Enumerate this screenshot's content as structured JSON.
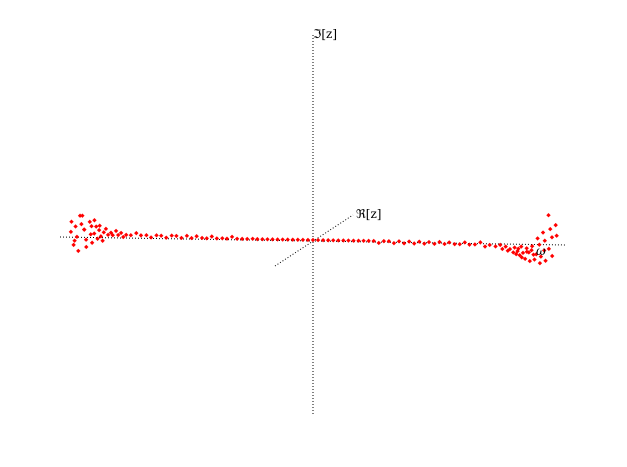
{
  "chart_data": {
    "type": "scatter",
    "projection": "3d-oblique",
    "grid": false,
    "colors": {
      "points": "#ff0000",
      "axes": "#000000"
    },
    "axes": {
      "omega": {
        "label": "ω",
        "range": [
          -1,
          1
        ]
      },
      "real": {
        "label": "ℜ[z]",
        "range": [
          -1,
          1
        ]
      },
      "imag": {
        "label": "ℑ[z]",
        "range": [
          -1,
          1
        ]
      }
    },
    "series": [
      {
        "marker": "diamond",
        "points": [
          [
            -0.96,
            0.02,
            0.02
          ],
          [
            -0.95,
            -0.03,
            0.08
          ],
          [
            -0.95,
            0.05,
            -0.03
          ],
          [
            -0.94,
            0.01,
            0.05
          ],
          [
            -0.94,
            -0.04,
            -0.04
          ],
          [
            -0.93,
            0.06,
            0.1
          ],
          [
            -0.93,
            -0.02,
            0.0
          ],
          [
            -0.92,
            0.03,
            0.06
          ],
          [
            -0.92,
            -0.05,
            -0.07
          ],
          [
            -0.91,
            0.04,
            0.03
          ],
          [
            -0.91,
            -0.01,
            0.11
          ],
          [
            -0.9,
            0.02,
            -0.02
          ],
          [
            -0.9,
            -0.03,
            0.04
          ],
          [
            -0.89,
            0.05,
            0.07
          ],
          [
            -0.89,
            -0.04,
            -0.05
          ],
          [
            -0.88,
            0.01,
            0.01
          ],
          [
            -0.88,
            0.03,
            0.05
          ],
          [
            -0.87,
            -0.02,
            -0.03
          ],
          [
            -0.87,
            0.04,
            0.08
          ],
          [
            -0.86,
            -0.03,
            0.02
          ],
          [
            -0.86,
            0.02,
            0.05
          ],
          [
            -0.85,
            -0.01,
            -0.01
          ],
          [
            -0.85,
            0.03,
            0.03
          ],
          [
            -0.84,
            -0.02,
            0.06
          ],
          [
            -0.84,
            0.01,
            0.0
          ],
          [
            -0.83,
            0.02,
            0.02
          ],
          [
            -0.83,
            -0.01,
            -0.02
          ],
          [
            -0.82,
            0.01,
            0.04
          ],
          [
            -0.81,
            0.0,
            0.01
          ],
          [
            -0.8,
            0.01,
            0.02
          ],
          [
            -0.79,
            -0.01,
            0.01
          ],
          [
            -0.78,
            0.01,
            0.03
          ],
          [
            -0.77,
            0.0,
            0.01
          ],
          [
            -0.76,
            0.01,
            0.02
          ],
          [
            -0.75,
            0.0,
            0.0
          ],
          [
            -0.74,
            0.01,
            0.01
          ],
          [
            -0.72,
            0.0,
            0.01
          ],
          [
            -0.7,
            0.01,
            0.02
          ],
          [
            -0.68,
            0.0,
            0.01
          ],
          [
            -0.66,
            0.01,
            0.01
          ],
          [
            -0.64,
            0.0,
            0.0
          ],
          [
            -0.62,
            0.01,
            0.01
          ],
          [
            -0.6,
            0.0,
            0.01
          ],
          [
            -0.58,
            0.0,
            0.0
          ],
          [
            -0.56,
            0.01,
            0.01
          ],
          [
            -0.54,
            0.0,
            0.01
          ],
          [
            -0.52,
            0.0,
            0.0
          ],
          [
            -0.5,
            0.01,
            0.01
          ],
          [
            -0.48,
            0.0,
            0.0
          ],
          [
            -0.46,
            0.0,
            0.01
          ],
          [
            -0.44,
            0.01,
            0.0
          ],
          [
            -0.42,
            0.0,
            0.0
          ],
          [
            -0.4,
            0.0,
            0.01
          ],
          [
            -0.38,
            0.0,
            0.0
          ],
          [
            -0.36,
            0.01,
            0.0
          ],
          [
            -0.34,
            0.0,
            0.0
          ],
          [
            -0.32,
            0.0,
            0.01
          ],
          [
            -0.3,
            0.0,
            0.0
          ],
          [
            -0.28,
            0.0,
            0.0
          ],
          [
            -0.26,
            0.0,
            0.0
          ],
          [
            -0.24,
            0.01,
            0.0
          ],
          [
            -0.22,
            0.0,
            0.0
          ],
          [
            -0.2,
            0.0,
            0.0
          ],
          [
            -0.18,
            0.0,
            0.0
          ],
          [
            -0.16,
            0.0,
            0.0
          ],
          [
            -0.14,
            0.0,
            0.0
          ],
          [
            -0.12,
            0.0,
            0.0
          ],
          [
            -0.1,
            0.0,
            0.0
          ],
          [
            -0.08,
            0.0,
            0.0
          ],
          [
            -0.06,
            0.0,
            0.0
          ],
          [
            -0.04,
            0.0,
            0.0
          ],
          [
            -0.02,
            0.0,
            0.0
          ],
          [
            0.0,
            0.0,
            0.0
          ],
          [
            0.02,
            0.0,
            0.0
          ],
          [
            0.04,
            0.0,
            0.0
          ],
          [
            0.06,
            0.0,
            0.0
          ],
          [
            0.08,
            0.0,
            0.0
          ],
          [
            0.1,
            0.0,
            0.0
          ],
          [
            0.12,
            0.0,
            0.0
          ],
          [
            0.14,
            0.0,
            0.0
          ],
          [
            0.16,
            0.0,
            0.0
          ],
          [
            0.18,
            0.0,
            0.0
          ],
          [
            0.2,
            0.0,
            0.0
          ],
          [
            0.22,
            0.0,
            0.0
          ],
          [
            0.24,
            0.0,
            0.0
          ],
          [
            0.26,
            0.0,
            -0.01
          ],
          [
            0.28,
            0.0,
            0.0
          ],
          [
            0.3,
            0.0,
            0.0
          ],
          [
            0.32,
            0.0,
            -0.01
          ],
          [
            0.34,
            0.0,
            0.0
          ],
          [
            0.36,
            0.0,
            -0.01
          ],
          [
            0.38,
            0.0,
            0.0
          ],
          [
            0.4,
            0.0,
            -0.01
          ],
          [
            0.42,
            0.0,
            0.0
          ],
          [
            0.44,
            0.0,
            -0.01
          ],
          [
            0.46,
            -0.01,
            0.0
          ],
          [
            0.48,
            0.0,
            -0.01
          ],
          [
            0.5,
            0.0,
            0.0
          ],
          [
            0.52,
            0.0,
            -0.01
          ],
          [
            0.54,
            -0.01,
            0.0
          ],
          [
            0.56,
            0.0,
            -0.01
          ],
          [
            0.58,
            0.0,
            -0.01
          ],
          [
            0.6,
            0.0,
            0.0
          ],
          [
            0.62,
            -0.01,
            -0.01
          ],
          [
            0.64,
            0.0,
            -0.01
          ],
          [
            0.66,
            0.01,
            0.0
          ],
          [
            0.68,
            0.0,
            -0.02
          ],
          [
            0.7,
            -0.01,
            -0.01
          ],
          [
            0.72,
            0.01,
            -0.02
          ],
          [
            0.74,
            0.0,
            -0.01
          ],
          [
            0.75,
            -0.01,
            -0.03
          ],
          [
            0.76,
            0.01,
            -0.02
          ],
          [
            0.77,
            0.0,
            -0.04
          ],
          [
            0.78,
            -0.01,
            -0.03
          ],
          [
            0.79,
            0.01,
            -0.05
          ],
          [
            0.8,
            -0.02,
            -0.02
          ],
          [
            0.8,
            0.02,
            -0.06
          ],
          [
            0.81,
            -0.01,
            -0.04
          ],
          [
            0.81,
            0.01,
            -0.03
          ],
          [
            0.82,
            -0.02,
            -0.06
          ],
          [
            0.82,
            0.02,
            -0.02
          ],
          [
            0.83,
            0.0,
            -0.05
          ],
          [
            0.83,
            -0.03,
            -0.07
          ],
          [
            0.84,
            0.03,
            -0.03
          ],
          [
            0.84,
            -0.01,
            -0.08
          ],
          [
            0.85,
            0.02,
            -0.05
          ],
          [
            0.85,
            -0.03,
            -0.04
          ],
          [
            0.86,
            0.04,
            -0.02
          ],
          [
            0.86,
            -0.02,
            -0.09
          ],
          [
            0.87,
            0.01,
            -0.06
          ],
          [
            0.87,
            -0.04,
            -0.03
          ],
          [
            0.88,
            0.05,
            0.02
          ],
          [
            0.88,
            -0.03,
            -0.08
          ],
          [
            0.89,
            0.03,
            -0.01
          ],
          [
            0.89,
            -0.05,
            -0.05
          ],
          [
            0.9,
            0.06,
            0.05
          ],
          [
            0.9,
            -0.02,
            -0.1
          ],
          [
            0.91,
            0.04,
            0.01
          ],
          [
            0.91,
            -0.06,
            -0.06
          ],
          [
            0.92,
            0.07,
            0.14
          ],
          [
            0.92,
            -0.04,
            -0.03
          ],
          [
            0.93,
            0.05,
            0.07
          ],
          [
            0.93,
            -0.07,
            -0.08
          ],
          [
            0.94,
            0.03,
            0.03
          ],
          [
            0.94,
            -0.05,
            -0.02
          ],
          [
            0.95,
            0.06,
            0.09
          ],
          [
            0.95,
            -0.03,
            -0.06
          ],
          [
            0.96,
            0.02,
            0.04
          ]
        ]
      }
    ]
  }
}
